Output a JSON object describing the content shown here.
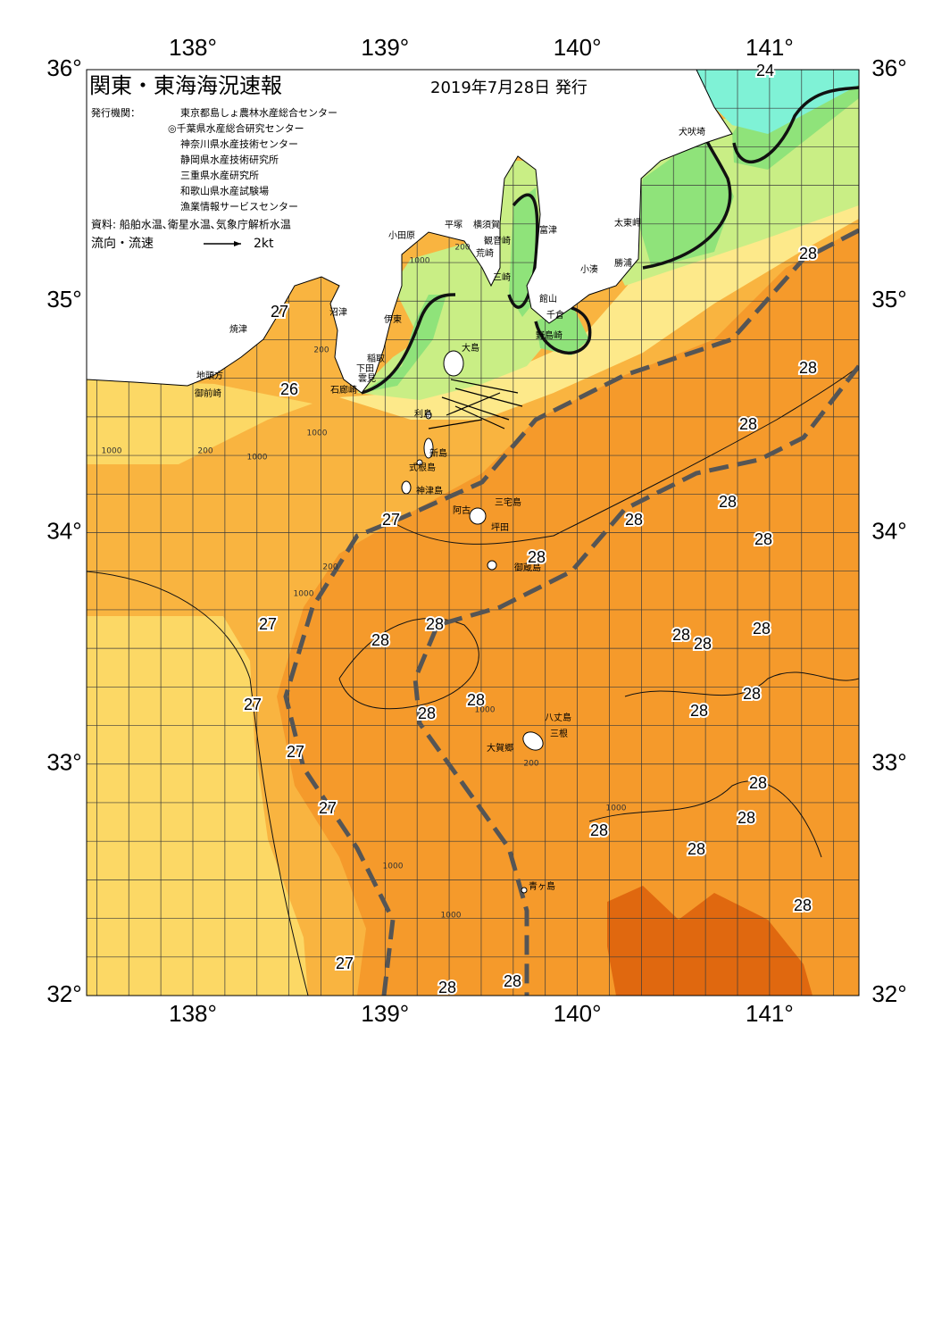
{
  "map": {
    "title": "関東・東海海況速報",
    "date": "2019年7月28日 発行",
    "issuers_label": "発行機関：",
    "issuers": [
      "東京都島しょ農林水産総合センター",
      "◎千葉県水産総合研究センター",
      "神奈川県水産技術センター",
      "静岡県水産技術研究所",
      "三重県水産研究所",
      "和歌山県水産試験場",
      "漁業情報サービスセンター"
    ],
    "source": "資料: 船舶水温､衛星水温､気象庁解析水温",
    "flow_label": "流向・流速",
    "flow_scale": "2kt",
    "lon_labels": [
      "138°",
      "139°",
      "140°",
      "141°"
    ],
    "lat_labels": [
      "36°",
      "35°",
      "34°",
      "33°",
      "32°"
    ],
    "places": [
      "小田原",
      "平塚",
      "横須賀",
      "富津",
      "観音崎",
      "荒崎",
      "三崎",
      "館山",
      "千倉",
      "野島崎",
      "小湊",
      "勝浦",
      "太東岬",
      "犬吠埼",
      "沼津",
      "焼津",
      "伊東",
      "稲取",
      "下田",
      "雲見",
      "石廊崎",
      "地頭方",
      "御前崎",
      "大島",
      "利島",
      "新島",
      "式根島",
      "神津島",
      "三宅島",
      "阿古",
      "坪田",
      "御蔵島",
      "八丈島",
      "三根",
      "大賀郷",
      "青ヶ島"
    ],
    "temperature_labels": [
      24,
      28,
      27,
      26,
      28,
      28,
      28,
      27,
      28,
      28,
      28,
      27,
      28,
      28,
      28,
      28,
      28,
      27,
      28,
      28,
      28,
      28,
      27,
      28,
      27,
      28,
      28,
      28,
      28,
      27,
      28,
      28
    ],
    "depth_labels": [
      1000,
      200,
      1000,
      200,
      1000,
      200,
      1000,
      1000,
      200,
      1000,
      1000,
      1000,
      200,
      1000
    ]
  }
}
